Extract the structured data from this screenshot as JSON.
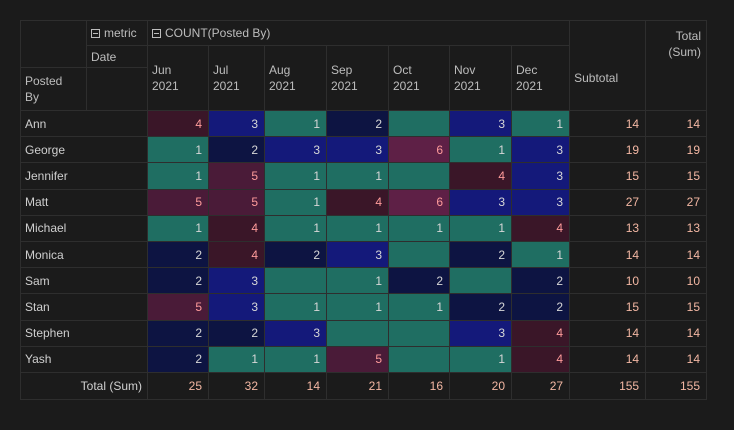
{
  "header": {
    "metric_label": "metric",
    "count_label": "COUNT(Posted By)",
    "date_label": "Date",
    "posted_by_label": "Posted By",
    "subtotal_label": "Subtotal",
    "total_sum_label": "Total (Sum)",
    "months": [
      "Jun 2021",
      "Jul 2021",
      "Aug 2021",
      "Sep 2021",
      "Oct 2021",
      "Nov 2021",
      "Dec 2021"
    ]
  },
  "rows": [
    {
      "name": "Ann",
      "cells": [
        {
          "v": "4",
          "c": "#3a1628"
        },
        {
          "v": "3",
          "c": "#14197a"
        },
        {
          "v": "1",
          "c": "#1f6e62"
        },
        {
          "v": "2",
          "c": "#0d1442"
        },
        {
          "v": "",
          "c": "#1f6e62"
        },
        {
          "v": "3",
          "c": "#14197a"
        },
        {
          "v": "1",
          "c": "#1f6e62"
        }
      ],
      "subtotal": "14",
      "total": "14"
    },
    {
      "name": "George",
      "cells": [
        {
          "v": "1",
          "c": "#1f6e62"
        },
        {
          "v": "2",
          "c": "#0d1442"
        },
        {
          "v": "3",
          "c": "#14197a"
        },
        {
          "v": "3",
          "c": "#14197a"
        },
        {
          "v": "6",
          "c": "#5e2046"
        },
        {
          "v": "1",
          "c": "#1f6e62"
        },
        {
          "v": "3",
          "c": "#14197a"
        }
      ],
      "subtotal": "19",
      "total": "19"
    },
    {
      "name": "Jennifer",
      "cells": [
        {
          "v": "1",
          "c": "#1f6e62"
        },
        {
          "v": "5",
          "c": "#4a1b38"
        },
        {
          "v": "1",
          "c": "#1f6e62"
        },
        {
          "v": "1",
          "c": "#1f6e62"
        },
        {
          "v": "",
          "c": "#1f6e62"
        },
        {
          "v": "4",
          "c": "#3a1628"
        },
        {
          "v": "3",
          "c": "#14197a"
        }
      ],
      "subtotal": "15",
      "total": "15"
    },
    {
      "name": "Matt",
      "cells": [
        {
          "v": "5",
          "c": "#4a1b38"
        },
        {
          "v": "5",
          "c": "#4a1b38"
        },
        {
          "v": "1",
          "c": "#1f6e62"
        },
        {
          "v": "4",
          "c": "#3a1628"
        },
        {
          "v": "6",
          "c": "#5e2046"
        },
        {
          "v": "3",
          "c": "#14197a"
        },
        {
          "v": "3",
          "c": "#14197a"
        }
      ],
      "subtotal": "27",
      "total": "27"
    },
    {
      "name": "Michael",
      "cells": [
        {
          "v": "1",
          "c": "#1f6e62"
        },
        {
          "v": "4",
          "c": "#3a1628"
        },
        {
          "v": "1",
          "c": "#1f6e62"
        },
        {
          "v": "1",
          "c": "#1f6e62"
        },
        {
          "v": "1",
          "c": "#1f6e62"
        },
        {
          "v": "1",
          "c": "#1f6e62"
        },
        {
          "v": "4",
          "c": "#3a1628"
        }
      ],
      "subtotal": "13",
      "total": "13"
    },
    {
      "name": "Monica",
      "cells": [
        {
          "v": "2",
          "c": "#0d1442"
        },
        {
          "v": "4",
          "c": "#3a1628"
        },
        {
          "v": "2",
          "c": "#0d1442"
        },
        {
          "v": "3",
          "c": "#14197a"
        },
        {
          "v": "",
          "c": "#1f6e62"
        },
        {
          "v": "2",
          "c": "#0d1442"
        },
        {
          "v": "1",
          "c": "#1f6e62"
        }
      ],
      "subtotal": "14",
      "total": "14"
    },
    {
      "name": "Sam",
      "cells": [
        {
          "v": "2",
          "c": "#0d1442"
        },
        {
          "v": "3",
          "c": "#14197a"
        },
        {
          "v": "",
          "c": "#1f6e62"
        },
        {
          "v": "1",
          "c": "#1f6e62"
        },
        {
          "v": "2",
          "c": "#0d1442"
        },
        {
          "v": "",
          "c": "#1f6e62"
        },
        {
          "v": "2",
          "c": "#0d1442"
        }
      ],
      "subtotal": "10",
      "total": "10"
    },
    {
      "name": "Stan",
      "cells": [
        {
          "v": "5",
          "c": "#4a1b38"
        },
        {
          "v": "3",
          "c": "#14197a"
        },
        {
          "v": "1",
          "c": "#1f6e62"
        },
        {
          "v": "1",
          "c": "#1f6e62"
        },
        {
          "v": "1",
          "c": "#1f6e62"
        },
        {
          "v": "2",
          "c": "#0d1442"
        },
        {
          "v": "2",
          "c": "#0d1442"
        }
      ],
      "subtotal": "15",
      "total": "15"
    },
    {
      "name": "Stephen",
      "cells": [
        {
          "v": "2",
          "c": "#0d1442"
        },
        {
          "v": "2",
          "c": "#0d1442"
        },
        {
          "v": "3",
          "c": "#14197a"
        },
        {
          "v": "",
          "c": "#1f6e62"
        },
        {
          "v": "",
          "c": "#1f6e62"
        },
        {
          "v": "3",
          "c": "#14197a"
        },
        {
          "v": "4",
          "c": "#3a1628"
        }
      ],
      "subtotal": "14",
      "total": "14"
    },
    {
      "name": "Yash",
      "cells": [
        {
          "v": "2",
          "c": "#0d1442"
        },
        {
          "v": "1",
          "c": "#1f6e62"
        },
        {
          "v": "1",
          "c": "#1f6e62"
        },
        {
          "v": "5",
          "c": "#4a1b38"
        },
        {
          "v": "",
          "c": "#1f6e62"
        },
        {
          "v": "1",
          "c": "#1f6e62"
        },
        {
          "v": "4",
          "c": "#3a1628"
        }
      ],
      "subtotal": "14",
      "total": "14"
    }
  ],
  "totals": {
    "label": "Total (Sum)",
    "values": [
      "25",
      "32",
      "14",
      "21",
      "16",
      "20",
      "27"
    ],
    "subtotal": "155",
    "total": "155"
  },
  "colors": {
    "background": "#1b1b1b",
    "grid": "#2e2e2e",
    "teal": "#1f6e62",
    "navy": "#0d1442",
    "blue": "#14197a",
    "maroon": "#3a1628",
    "plum": "#4a1b38",
    "magenta": "#5e2046",
    "number_accent": "#ff9b9b",
    "subtotal_text": "#f3b7a3"
  }
}
